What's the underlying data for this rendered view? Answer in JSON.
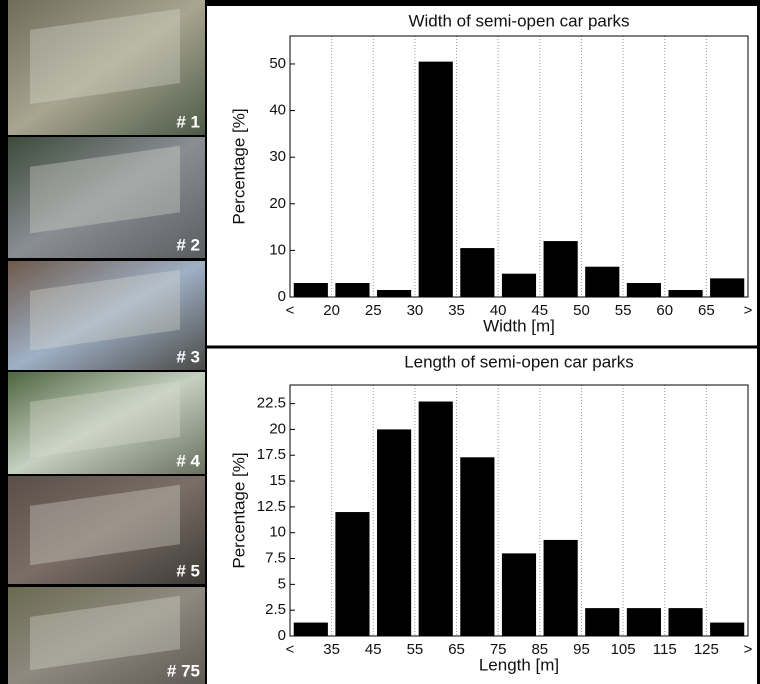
{
  "photo_labels": [
    "# 1",
    "# 2",
    "# 3",
    "# 4",
    "# 5",
    "# 75"
  ],
  "chart_data": [
    {
      "type": "histogram",
      "title": "Width of semi-open car parks",
      "x_label": "Width [m]",
      "y_label": "Percentage [%]",
      "bins": [
        "<",
        "20",
        "25",
        "30",
        "35",
        "40",
        "45",
        "50",
        "55",
        "60",
        "65",
        ">"
      ],
      "values": [
        3,
        3,
        1.5,
        50.5,
        10.5,
        5,
        12,
        6.5,
        3,
        1.5,
        4
      ],
      "color": "#000000",
      "ylim": [
        0,
        56
      ],
      "yticks": [
        0,
        10,
        20,
        30,
        40,
        50
      ],
      "grid": true
    },
    {
      "type": "histogram",
      "title": "Length of semi-open car parks",
      "x_label": "Length [m]",
      "y_label": "Percentage [%]",
      "bins": [
        "<",
        "35",
        "45",
        "55",
        "65",
        "75",
        "85",
        "95",
        "105",
        "115",
        "125",
        ">"
      ],
      "values": [
        1.3,
        12,
        20,
        22.7,
        17.3,
        8,
        9.3,
        2.7,
        2.7,
        2.7,
        1.3
      ],
      "color": "#000000",
      "ylim": [
        0,
        24.3
      ],
      "yticks": [
        0,
        2.5,
        5,
        7.5,
        10,
        12.5,
        15,
        17.5,
        20,
        22.5
      ],
      "grid": true
    }
  ]
}
